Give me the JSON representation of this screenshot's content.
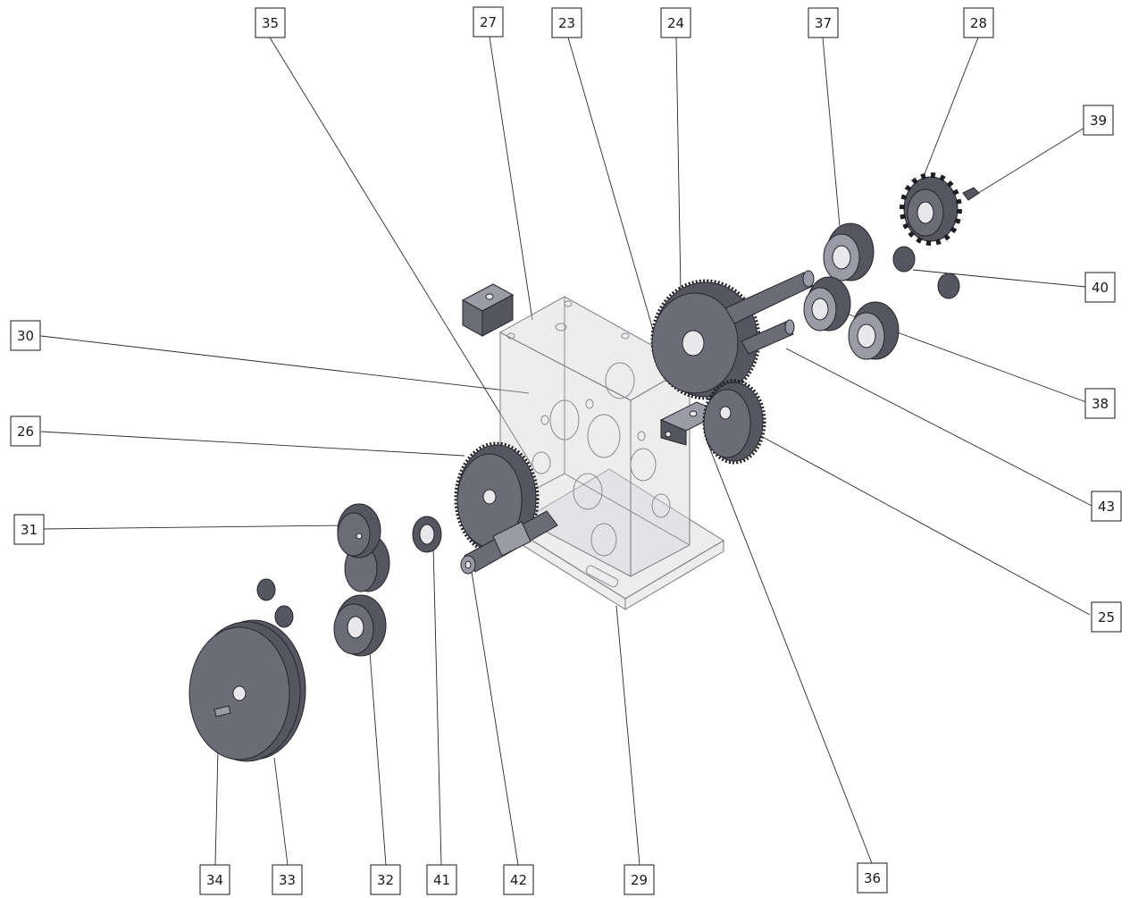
{
  "balloons": [
    {
      "id": "35",
      "label": "35"
    },
    {
      "id": "27",
      "label": "27"
    },
    {
      "id": "23",
      "label": "23"
    },
    {
      "id": "24",
      "label": "24"
    },
    {
      "id": "37",
      "label": "37"
    },
    {
      "id": "28",
      "label": "28"
    },
    {
      "id": "39",
      "label": "39"
    },
    {
      "id": "40",
      "label": "40"
    },
    {
      "id": "30",
      "label": "30"
    },
    {
      "id": "38",
      "label": "38"
    },
    {
      "id": "26",
      "label": "26"
    },
    {
      "id": "43",
      "label": "43"
    },
    {
      "id": "31",
      "label": "31"
    },
    {
      "id": "25",
      "label": "25"
    },
    {
      "id": "34",
      "label": "34"
    },
    {
      "id": "33",
      "label": "33"
    },
    {
      "id": "32",
      "label": "32"
    },
    {
      "id": "41",
      "label": "41"
    },
    {
      "id": "42",
      "label": "42"
    },
    {
      "id": "29",
      "label": "29"
    },
    {
      "id": "36",
      "label": "36"
    }
  ],
  "colors": {
    "part": "#55565f",
    "housing": "#d6d6d9",
    "line": "#2a2a2a"
  }
}
